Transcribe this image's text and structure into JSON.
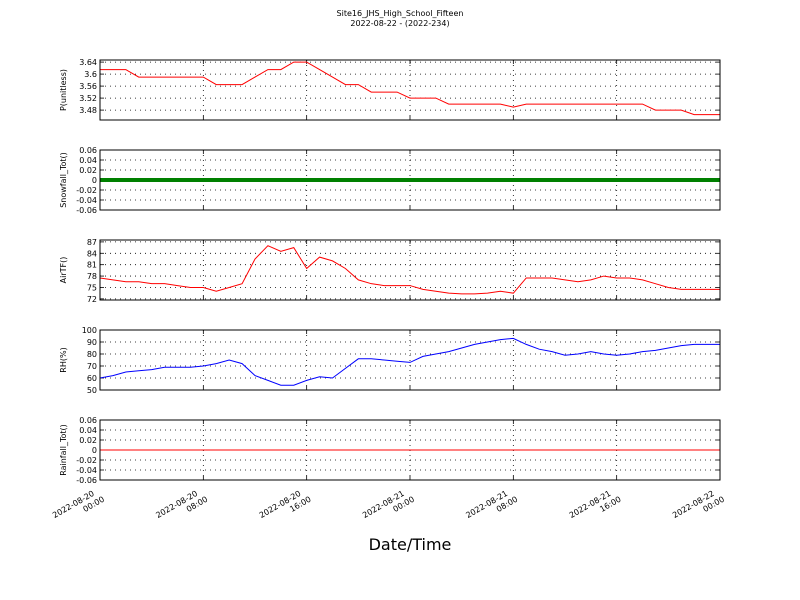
{
  "title": "Site16_JHS_High_School_Fifteen",
  "subtitle": "2022-08-22 - (2022-234)",
  "xlabel": "Date/Time",
  "x": [
    "2022-08-20 00:00",
    "2022-08-20 01:00",
    "2022-08-20 02:00",
    "2022-08-20 03:00",
    "2022-08-20 04:00",
    "2022-08-20 05:00",
    "2022-08-20 06:00",
    "2022-08-20 07:00",
    "2022-08-20 08:00",
    "2022-08-20 09:00",
    "2022-08-20 10:00",
    "2022-08-20 11:00",
    "2022-08-20 12:00",
    "2022-08-20 13:00",
    "2022-08-20 14:00",
    "2022-08-20 15:00",
    "2022-08-20 16:00",
    "2022-08-20 17:00",
    "2022-08-20 18:00",
    "2022-08-20 19:00",
    "2022-08-20 20:00",
    "2022-08-20 21:00",
    "2022-08-20 22:00",
    "2022-08-20 23:00",
    "2022-08-21 00:00",
    "2022-08-21 01:00",
    "2022-08-21 02:00",
    "2022-08-21 03:00",
    "2022-08-21 04:00",
    "2022-08-21 05:00",
    "2022-08-21 06:00",
    "2022-08-21 07:00",
    "2022-08-21 08:00",
    "2022-08-21 09:00",
    "2022-08-21 10:00",
    "2022-08-21 11:00",
    "2022-08-21 12:00",
    "2022-08-21 13:00",
    "2022-08-21 14:00",
    "2022-08-21 15:00",
    "2022-08-21 16:00",
    "2022-08-21 17:00",
    "2022-08-21 18:00",
    "2022-08-21 19:00",
    "2022-08-21 20:00",
    "2022-08-21 21:00",
    "2022-08-21 22:00",
    "2022-08-21 23:00",
    "2022-08-22 00:00"
  ],
  "xlim": [
    "2022-08-20 00:00",
    "2022-08-22 00:00"
  ],
  "xticks": [
    "2022-08-20 00:00",
    "2022-08-20 08:00",
    "2022-08-20 16:00",
    "2022-08-21 00:00",
    "2022-08-21 08:00",
    "2022-08-21 16:00",
    "2022-08-22 00:00"
  ],
  "chart_data": [
    {
      "type": "line",
      "ylabel": "P(unitless)",
      "ylim": [
        3.447,
        3.647
      ],
      "yticks": [
        3.48,
        3.52,
        3.56,
        3.6,
        3.64
      ],
      "grid": true,
      "color": "#ff0000",
      "width": 1,
      "values": [
        3.615,
        3.615,
        3.615,
        3.59,
        3.59,
        3.59,
        3.59,
        3.59,
        3.59,
        3.565,
        3.565,
        3.565,
        3.59,
        3.615,
        3.615,
        3.64,
        3.64,
        3.615,
        3.59,
        3.565,
        3.565,
        3.54,
        3.54,
        3.54,
        3.52,
        3.52,
        3.52,
        3.5,
        3.5,
        3.5,
        3.5,
        3.5,
        3.49,
        3.5,
        3.5,
        3.5,
        3.5,
        3.5,
        3.5,
        3.5,
        3.5,
        3.5,
        3.5,
        3.48,
        3.48,
        3.48,
        3.465,
        3.465,
        3.465
      ]
    },
    {
      "type": "line",
      "ylabel": "Snowfall_Tot()",
      "ylim": [
        -0.06,
        0.06
      ],
      "yticks": [
        -0.06,
        -0.04,
        -0.02,
        0.0,
        0.02,
        0.04,
        0.06
      ],
      "grid": true,
      "color": "#008000",
      "width": 4,
      "values": [
        0,
        0,
        0,
        0,
        0,
        0,
        0,
        0,
        0,
        0,
        0,
        0,
        0,
        0,
        0,
        0,
        0,
        0,
        0,
        0,
        0,
        0,
        0,
        0,
        0,
        0,
        0,
        0,
        0,
        0,
        0,
        0,
        0,
        0,
        0,
        0,
        0,
        0,
        0,
        0,
        0,
        0,
        0,
        0,
        0,
        0,
        0,
        0,
        0
      ]
    },
    {
      "type": "line",
      "ylabel": "AirTF()",
      "ylim": [
        71.7,
        87.5
      ],
      "yticks": [
        72,
        75,
        78,
        81,
        84,
        87
      ],
      "grid": true,
      "color": "#ff0000",
      "width": 1,
      "values": [
        77.5,
        77,
        76.5,
        76.5,
        76,
        76,
        75.5,
        75,
        75,
        74,
        75,
        76,
        82.5,
        86,
        84.5,
        85.5,
        80,
        83,
        82,
        80,
        77,
        76,
        75.5,
        75.5,
        75.5,
        74.5,
        74,
        73.5,
        73.3,
        73.3,
        73.5,
        74,
        73.5,
        77.5,
        77.5,
        77.5,
        77,
        76.5,
        77,
        78,
        77.5,
        77.5,
        77,
        76,
        75,
        74.5,
        74.5,
        74.5,
        74.5
      ]
    },
    {
      "type": "line",
      "ylabel": "RH(%)",
      "ylim": [
        50,
        100
      ],
      "yticks": [
        50,
        60,
        70,
        80,
        90,
        100
      ],
      "grid": true,
      "color": "#0000ff",
      "width": 1,
      "values": [
        60,
        62,
        65,
        66,
        67,
        69,
        69,
        69,
        70,
        72,
        75,
        72,
        62,
        58,
        54,
        54,
        58,
        61,
        60,
        68,
        76,
        76,
        75,
        74,
        73,
        78,
        80,
        82,
        85,
        88,
        90,
        92,
        93,
        88,
        84,
        82,
        79,
        80,
        82,
        80,
        79,
        80,
        82,
        83,
        85,
        87,
        88,
        88,
        88
      ]
    },
    {
      "type": "line",
      "ylabel": "Rainfall_Tot()",
      "ylim": [
        -0.06,
        0.06
      ],
      "yticks": [
        -0.06,
        -0.04,
        -0.02,
        0.0,
        0.02,
        0.04,
        0.06
      ],
      "grid": true,
      "color": "#ff0000",
      "width": 1,
      "values": [
        0,
        0,
        0,
        0,
        0,
        0,
        0,
        0,
        0,
        0,
        0,
        0,
        0,
        0,
        0,
        0,
        0,
        0,
        0,
        0,
        0,
        0,
        0,
        0,
        0,
        0,
        0,
        0,
        0,
        0,
        0,
        0,
        0,
        0,
        0,
        0,
        0,
        0,
        0,
        0,
        0,
        0,
        0,
        0,
        0,
        0,
        0,
        0,
        0
      ]
    }
  ]
}
